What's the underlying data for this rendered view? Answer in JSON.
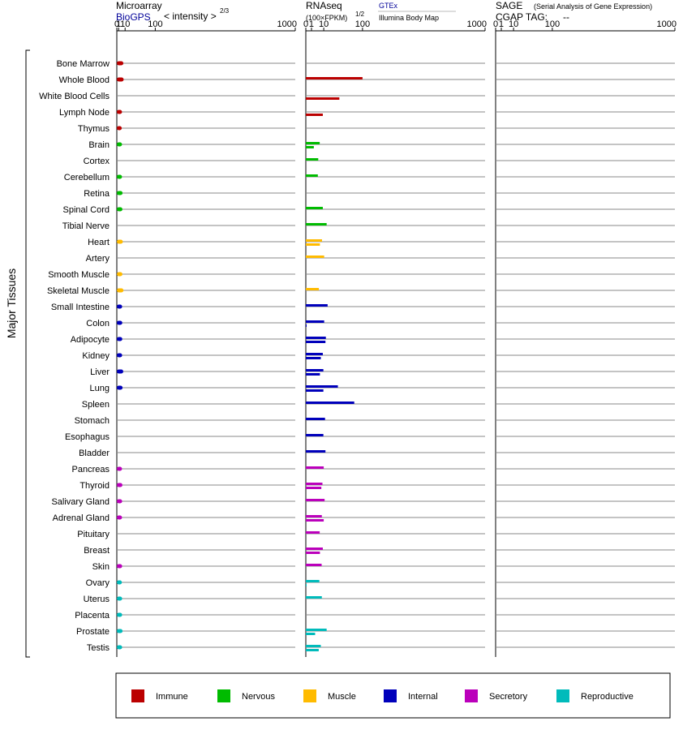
{
  "panels": {
    "microarray": {
      "title": "Microarray",
      "link": "BioGPS",
      "subtitle": "< intensity >",
      "exponent": "2/3"
    },
    "rnaseq": {
      "title": "RNAseq",
      "subtitle": "(100×FPKM)",
      "exponent": "1/2",
      "link": "GTEx",
      "link2": "Illumina Body Map"
    },
    "sage": {
      "title": "SAGE",
      "title_note": "(Serial Analysis of Gene Expression)",
      "tag_label": "CGAP TAG:",
      "tag_value": "--"
    }
  },
  "y_axis_label": "Major Tissues",
  "colors": {
    "Immune": "#bb0000",
    "Nervous": "#00bb00",
    "Muscle": "#ffbb00",
    "Internal": "#0000bb",
    "Secretory": "#bb00bb",
    "Reproductive": "#00bbbb"
  },
  "legend": [
    "Immune",
    "Nervous",
    "Muscle",
    "Internal",
    "Secretory",
    "Reproductive"
  ],
  "chart_data": {
    "type": "bar",
    "x_scale": "power",
    "x_ticks": [
      0,
      1,
      10,
      100,
      1000
    ],
    "x_range": [
      0,
      1000
    ],
    "tissues": [
      {
        "name": "Bone Marrow",
        "group": "Immune",
        "microarray": 7,
        "gtex": null,
        "ibm": null
      },
      {
        "name": "Whole Blood",
        "group": "Immune",
        "microarray": 7.5,
        "gtex": 100,
        "ibm": null
      },
      {
        "name": "White Blood Cells",
        "group": "Immune",
        "microarray": null,
        "gtex": null,
        "ibm": 35
      },
      {
        "name": "Lymph Node",
        "group": "Immune",
        "microarray": 5,
        "gtex": null,
        "ibm": 9
      },
      {
        "name": "Thymus",
        "group": "Immune",
        "microarray": 4.6,
        "gtex": null,
        "ibm": null
      },
      {
        "name": "Brain",
        "group": "Nervous",
        "microarray": 5,
        "gtex": 6,
        "ibm": 2
      },
      {
        "name": "Cortex",
        "group": "Nervous",
        "microarray": null,
        "gtex": 4.8,
        "ibm": null
      },
      {
        "name": "Cerebellum",
        "group": "Nervous",
        "microarray": 5,
        "gtex": 4.5,
        "ibm": null
      },
      {
        "name": "Retina",
        "group": "Nervous",
        "microarray": 5.8,
        "gtex": null,
        "ibm": null
      },
      {
        "name": "Spinal Cord",
        "group": "Nervous",
        "microarray": 5.6,
        "gtex": 9,
        "ibm": null
      },
      {
        "name": "Tibial Nerve",
        "group": "Nervous",
        "microarray": null,
        "gtex": 13.5,
        "ibm": null
      },
      {
        "name": "Heart",
        "group": "Muscle",
        "microarray": 6.2,
        "gtex": 8.2,
        "ibm": 6.2
      },
      {
        "name": "Artery",
        "group": "Muscle",
        "microarray": null,
        "gtex": 10.5,
        "ibm": null
      },
      {
        "name": "Smooth Muscle",
        "group": "Muscle",
        "microarray": 5.6,
        "gtex": null,
        "ibm": null
      },
      {
        "name": "Skeletal Muscle",
        "group": "Muscle",
        "microarray": 7.2,
        "gtex": 5.3,
        "ibm": null
      },
      {
        "name": "Small Intestine",
        "group": "Internal",
        "microarray": 5.2,
        "gtex": 14.8,
        "ibm": null
      },
      {
        "name": "Colon",
        "group": "Internal",
        "microarray": 5.4,
        "gtex": 10.5,
        "ibm": 0.02
      },
      {
        "name": "Adipocyte",
        "group": "Internal",
        "microarray": 5.4,
        "gtex": 12.5,
        "ibm": 12
      },
      {
        "name": "Kidney",
        "group": "Internal",
        "microarray": 5.2,
        "gtex": 9,
        "ibm": 7
      },
      {
        "name": "Liver",
        "group": "Internal",
        "microarray": 6.9,
        "gtex": 9.6,
        "ibm": 6.2
      },
      {
        "name": "Lung",
        "group": "Internal",
        "microarray": 5.8,
        "gtex": 32,
        "ibm": 9.6
      },
      {
        "name": "Spleen",
        "group": "Internal",
        "microarray": null,
        "gtex": 73,
        "ibm": null
      },
      {
        "name": "Stomach",
        "group": "Internal",
        "microarray": null,
        "gtex": 11.5,
        "ibm": null
      },
      {
        "name": "Esophagus",
        "group": "Internal",
        "microarray": null,
        "gtex": 9.6,
        "ibm": null
      },
      {
        "name": "Bladder",
        "group": "Internal",
        "microarray": null,
        "gtex": 12,
        "ibm": null
      },
      {
        "name": "Pancreas",
        "group": "Secretory",
        "microarray": 5,
        "gtex": 10,
        "ibm": null
      },
      {
        "name": "Thyroid",
        "group": "Secretory",
        "microarray": 5.6,
        "gtex": 8.6,
        "ibm": 7.5
      },
      {
        "name": "Salivary Gland",
        "group": "Secretory",
        "microarray": 5.2,
        "gtex": 11,
        "ibm": null
      },
      {
        "name": "Adrenal Gland",
        "group": "Secretory",
        "microarray": 5,
        "gtex": 8,
        "ibm": 10
      },
      {
        "name": "Pituitary",
        "group": "Secretory",
        "microarray": null,
        "gtex": 6,
        "ibm": null
      },
      {
        "name": "Breast",
        "group": "Secretory",
        "microarray": null,
        "gtex": 9,
        "ibm": 6.2
      },
      {
        "name": "Skin",
        "group": "Secretory",
        "microarray": 5.2,
        "gtex": 7.8,
        "ibm": null
      },
      {
        "name": "Ovary",
        "group": "Reproductive",
        "microarray": 4.8,
        "gtex": 5.7,
        "ibm": 0.02
      },
      {
        "name": "Uterus",
        "group": "Reproductive",
        "microarray": 5.2,
        "gtex": 8,
        "ibm": null
      },
      {
        "name": "Placenta",
        "group": "Reproductive",
        "microarray": 5.2,
        "gtex": null,
        "ibm": null
      },
      {
        "name": "Prostate",
        "group": "Reproductive",
        "microarray": 5.8,
        "gtex": 13.5,
        "ibm": 2.7
      },
      {
        "name": "Testis",
        "group": "Reproductive",
        "microarray": 5.2,
        "gtex": 7,
        "ibm": 5.2
      }
    ]
  }
}
